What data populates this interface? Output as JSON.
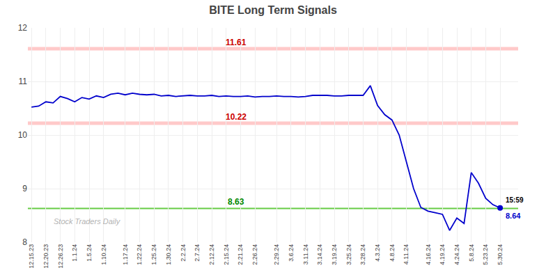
{
  "chart_data": {
    "type": "line",
    "title": "BITE Long Term Signals",
    "watermark": "Stock Traders Daily",
    "categories": [
      "12.15.23",
      null,
      "12.20.23",
      null,
      "12.26.23",
      null,
      "1.1.24",
      null,
      "1.5.24",
      null,
      "1.10.24",
      null,
      null,
      "1.17.24",
      null,
      "1.22.24",
      null,
      "1.25.24",
      null,
      "1.30.24",
      null,
      "2.2.24",
      null,
      "2.7.24",
      null,
      "2.12.24",
      null,
      "2.15.24",
      null,
      "2.21.24",
      null,
      "2.26.24",
      null,
      null,
      "2.29.24",
      null,
      "3.6.24",
      null,
      "3.11.24",
      null,
      "3.14.24",
      null,
      "3.19.24",
      null,
      "3.25.24",
      null,
      "3.28.24",
      null,
      "4.3.24",
      null,
      "4.8.24",
      null,
      "4.11.24",
      null,
      null,
      "4.16.24",
      null,
      "4.19.24",
      null,
      "4.24.24",
      null,
      "5.8.24",
      null,
      "5.23.24",
      null,
      "5.30.24"
    ],
    "series": [
      {
        "color": "#0000cc",
        "values": [
          10.52,
          10.54,
          10.62,
          10.6,
          10.72,
          10.68,
          10.62,
          10.7,
          10.67,
          10.73,
          10.7,
          10.76,
          10.78,
          10.75,
          10.78,
          10.76,
          10.75,
          10.76,
          10.73,
          10.74,
          10.72,
          10.73,
          10.74,
          10.73,
          10.73,
          10.74,
          10.72,
          10.73,
          10.72,
          10.72,
          10.73,
          10.71,
          10.72,
          10.72,
          10.73,
          10.72,
          10.72,
          10.71,
          10.72,
          10.74,
          10.74,
          10.74,
          10.73,
          10.73,
          10.74,
          10.74,
          10.74,
          10.92,
          10.55,
          10.38,
          10.28,
          10.0,
          9.5,
          9.0,
          8.65,
          8.58,
          8.55,
          8.52,
          8.22,
          8.45,
          8.35,
          9.3,
          9.1,
          8.82,
          8.7,
          8.64
        ]
      }
    ],
    "hlines": [
      {
        "value": 11.61,
        "label": "11.61",
        "color": "#ffb3b3",
        "label_color": "#cc0000"
      },
      {
        "value": 10.22,
        "label": "10.22",
        "color": "#ffb3b3",
        "label_color": "#cc0000"
      },
      {
        "value": 8.63,
        "label": "8.63",
        "color": "#66cc44",
        "label_color": "#008800"
      }
    ],
    "annotations": [
      {
        "text": "15:59",
        "color": "#000000"
      },
      {
        "text": "8.64",
        "color": "#0000cc"
      }
    ],
    "ylim": [
      8,
      12
    ],
    "yticks": [
      8,
      9,
      10,
      11,
      12
    ],
    "grid": true
  }
}
